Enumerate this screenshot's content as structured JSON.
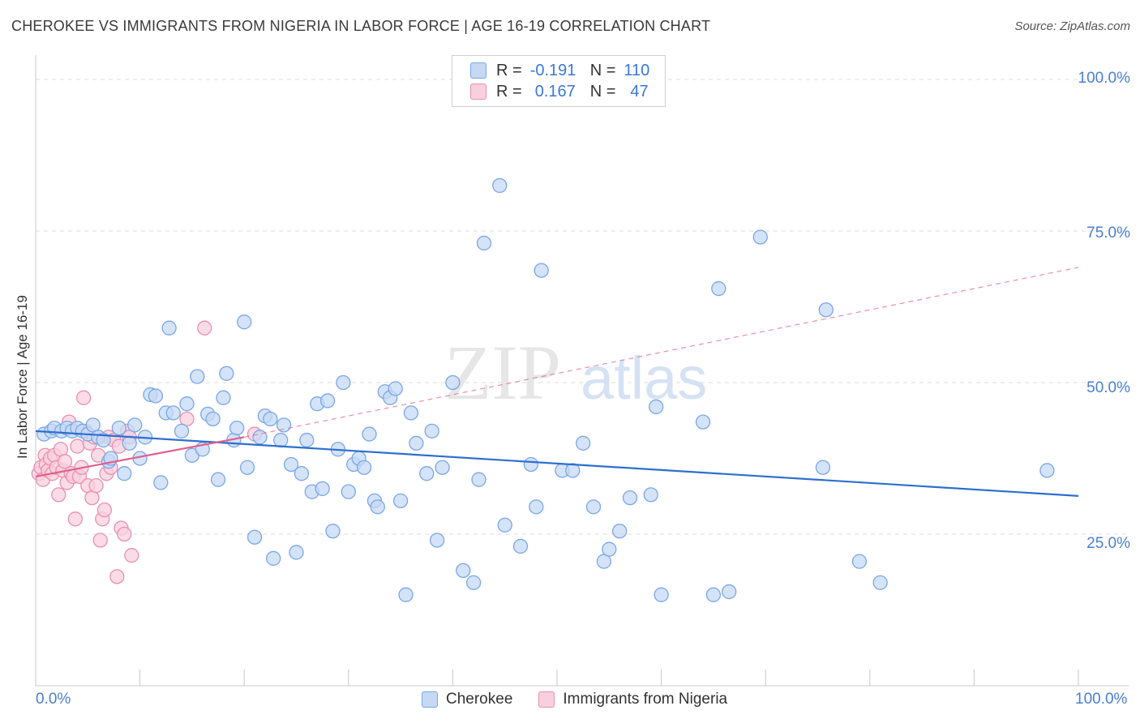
{
  "title": "CHEROKEE VS IMMIGRANTS FROM NIGERIA IN LABOR FORCE | AGE 16-19 CORRELATION CHART",
  "source": "Source: ZipAtlas.com",
  "watermark": {
    "zip": "ZIP",
    "atlas": "atlas"
  },
  "legend": {
    "r_label": "R =",
    "n_label": "N =",
    "rows": [
      {
        "r": "-0.191",
        "n": "110"
      },
      {
        "r": "0.167",
        "n": "47"
      }
    ]
  },
  "colors": {
    "cherokee_fill": "#c5d9f5",
    "cherokee_stroke": "#7aa7e6",
    "cherokee_line": "#2d6fcf",
    "nigeria_fill": "#f8d0dd",
    "nigeria_stroke": "#ec8fae",
    "nigeria_line": "#e0608c",
    "axis_text": "#4a7fd0"
  },
  "chart_data": {
    "type": "scatter",
    "title": "CHEROKEE VS IMMIGRANTS FROM NIGERIA IN LABOR FORCE | AGE 16-19 CORRELATION CHART",
    "xlabel": "",
    "ylabel": "In Labor Force | Age 16-19",
    "xlim": [
      0,
      100
    ],
    "ylim": [
      0,
      100
    ],
    "x_tick_labels": [
      "0.0%",
      "100.0%"
    ],
    "y_tick_labels": [
      "100.0%",
      "75.0%",
      "50.0%",
      "25.0%"
    ],
    "y_ticks": [
      100,
      75,
      50,
      25
    ],
    "grid": true,
    "legend_position": "bottom-center",
    "series": [
      {
        "name": "Cherokee",
        "trend": {
          "x0": 0,
          "y0": 42.0,
          "x1": 100,
          "y1": 31.3,
          "dashed_extension": false
        },
        "points": [
          [
            0.8,
            41.5
          ],
          [
            1.5,
            42.0
          ],
          [
            1.8,
            42.5
          ],
          [
            2.5,
            42.0
          ],
          [
            3.0,
            42.5
          ],
          [
            3.5,
            42.0
          ],
          [
            4.0,
            42.5
          ],
          [
            4.5,
            42.0
          ],
          [
            5.0,
            41.5
          ],
          [
            5.5,
            43.0
          ],
          [
            6.0,
            41.0
          ],
          [
            6.5,
            40.5
          ],
          [
            7.0,
            37.0
          ],
          [
            7.2,
            37.5
          ],
          [
            8.0,
            42.5
          ],
          [
            8.5,
            35.0
          ],
          [
            9.0,
            40.0
          ],
          [
            9.5,
            43.0
          ],
          [
            10.0,
            37.5
          ],
          [
            10.5,
            41.0
          ],
          [
            11.0,
            48.0
          ],
          [
            11.5,
            47.8
          ],
          [
            12.0,
            33.5
          ],
          [
            12.5,
            45.0
          ],
          [
            12.8,
            59.0
          ],
          [
            13.2,
            45.0
          ],
          [
            14.0,
            42.0
          ],
          [
            14.5,
            46.5
          ],
          [
            15.0,
            38.0
          ],
          [
            15.5,
            51.0
          ],
          [
            16.0,
            39.0
          ],
          [
            16.5,
            44.8
          ],
          [
            17.0,
            44.0
          ],
          [
            17.5,
            34.0
          ],
          [
            18.0,
            47.5
          ],
          [
            18.3,
            51.5
          ],
          [
            19.0,
            40.5
          ],
          [
            19.3,
            42.5
          ],
          [
            20.0,
            60.0
          ],
          [
            20.3,
            36.0
          ],
          [
            21.0,
            24.5
          ],
          [
            21.5,
            41.0
          ],
          [
            22.0,
            44.5
          ],
          [
            22.5,
            44.0
          ],
          [
            22.8,
            21.0
          ],
          [
            23.5,
            40.5
          ],
          [
            23.8,
            43.0
          ],
          [
            24.5,
            36.5
          ],
          [
            25.0,
            22.0
          ],
          [
            25.5,
            35.0
          ],
          [
            26.0,
            40.5
          ],
          [
            26.5,
            32.0
          ],
          [
            27.0,
            46.5
          ],
          [
            27.5,
            32.5
          ],
          [
            28.0,
            47.0
          ],
          [
            28.5,
            25.5
          ],
          [
            29.0,
            39.0
          ],
          [
            29.5,
            50.0
          ],
          [
            30.0,
            32.0
          ],
          [
            30.5,
            36.5
          ],
          [
            31.0,
            37.5
          ],
          [
            31.5,
            36.0
          ],
          [
            32.0,
            41.5
          ],
          [
            32.5,
            30.5
          ],
          [
            32.8,
            29.5
          ],
          [
            33.5,
            48.5
          ],
          [
            34.0,
            47.5
          ],
          [
            34.5,
            49.0
          ],
          [
            35.0,
            30.5
          ],
          [
            35.5,
            15.0
          ],
          [
            36.0,
            45.0
          ],
          [
            36.5,
            40.0
          ],
          [
            37.5,
            35.0
          ],
          [
            38.0,
            42.0
          ],
          [
            38.5,
            24.0
          ],
          [
            39.0,
            36.0
          ],
          [
            40.0,
            50.0
          ],
          [
            41.0,
            19.0
          ],
          [
            42.0,
            17.0
          ],
          [
            42.5,
            34.0
          ],
          [
            43.0,
            73.0
          ],
          [
            44.5,
            82.5
          ],
          [
            45.0,
            26.5
          ],
          [
            46.5,
            23.0
          ],
          [
            47.5,
            36.5
          ],
          [
            48.0,
            29.5
          ],
          [
            48.5,
            68.5
          ],
          [
            50.5,
            35.5
          ],
          [
            51.5,
            35.5
          ],
          [
            52.5,
            40.0
          ],
          [
            53.5,
            29.5
          ],
          [
            54.5,
            20.5
          ],
          [
            55.0,
            22.5
          ],
          [
            56.0,
            25.5
          ],
          [
            57.0,
            31.0
          ],
          [
            59.0,
            31.5
          ],
          [
            59.5,
            46.0
          ],
          [
            60.0,
            15.0
          ],
          [
            64.0,
            43.5
          ],
          [
            65.0,
            15.0
          ],
          [
            65.5,
            65.5
          ],
          [
            66.5,
            15.5
          ],
          [
            69.5,
            74.0
          ],
          [
            75.5,
            36.0
          ],
          [
            75.8,
            62.0
          ],
          [
            79.0,
            20.5
          ],
          [
            81.0,
            17.0
          ],
          [
            97.0,
            35.5
          ]
        ]
      },
      {
        "name": "Immigrants from Nigeria",
        "trend": {
          "x0": 0,
          "y0": 34.5,
          "x1": 20,
          "y1": 41.0,
          "dashed_extension": true,
          "dash_x1": 100,
          "dash_y1": 69.0
        },
        "points": [
          [
            0.3,
            35.0
          ],
          [
            0.5,
            36.0
          ],
          [
            0.7,
            34.0
          ],
          [
            0.9,
            38.0
          ],
          [
            1.0,
            36.5
          ],
          [
            1.2,
            35.5
          ],
          [
            1.4,
            37.5
          ],
          [
            1.6,
            35.0
          ],
          [
            1.8,
            38.0
          ],
          [
            2.0,
            36.0
          ],
          [
            2.2,
            31.5
          ],
          [
            2.4,
            39.0
          ],
          [
            2.6,
            35.5
          ],
          [
            2.8,
            37.0
          ],
          [
            3.0,
            33.5
          ],
          [
            3.2,
            43.5
          ],
          [
            3.4,
            35.0
          ],
          [
            3.6,
            34.5
          ],
          [
            3.8,
            27.5
          ],
          [
            4.0,
            39.5
          ],
          [
            4.2,
            34.5
          ],
          [
            4.4,
            36.0
          ],
          [
            4.6,
            47.5
          ],
          [
            4.8,
            42.0
          ],
          [
            5.0,
            33.0
          ],
          [
            5.2,
            40.0
          ],
          [
            5.4,
            31.0
          ],
          [
            5.6,
            41.0
          ],
          [
            5.8,
            33.0
          ],
          [
            6.0,
            38.0
          ],
          [
            6.2,
            24.0
          ],
          [
            6.4,
            27.5
          ],
          [
            6.6,
            29.0
          ],
          [
            6.8,
            35.0
          ],
          [
            7.0,
            41.0
          ],
          [
            7.2,
            36.0
          ],
          [
            7.5,
            40.5
          ],
          [
            7.8,
            18.0
          ],
          [
            8.0,
            39.5
          ],
          [
            8.2,
            26.0
          ],
          [
            8.5,
            25.0
          ],
          [
            8.8,
            42.0
          ],
          [
            9.0,
            41.0
          ],
          [
            9.2,
            21.5
          ],
          [
            14.5,
            44.0
          ],
          [
            16.2,
            59.0
          ],
          [
            21.0,
            41.5
          ]
        ]
      }
    ]
  },
  "bottom_legend": [
    "Cherokee",
    "Immigrants from Nigeria"
  ]
}
